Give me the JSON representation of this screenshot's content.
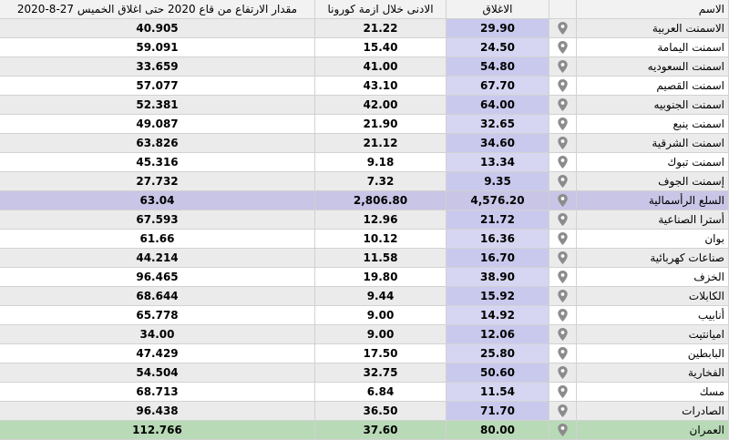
{
  "headers": {
    "rise": "مقدار الارتفاع من قاع 2020 حتى اغلاق الخميس 27-8-2020",
    "low": "الادنى خلال ازمة كورونا",
    "close": "الاغلاق",
    "name": "الاسم"
  },
  "rows": [
    {
      "name": "الاسمنت العربية",
      "close": "29.90",
      "low": "21.22",
      "rise": "40.905",
      "style": "alt"
    },
    {
      "name": "اسمنت اليمامة",
      "close": "24.50",
      "low": "15.40",
      "rise": "59.091",
      "style": "plain"
    },
    {
      "name": "اسمنت السعوديه",
      "close": "54.80",
      "low": "41.00",
      "rise": "33.659",
      "style": "alt"
    },
    {
      "name": "اسمنت القصيم",
      "close": "67.70",
      "low": "43.10",
      "rise": "57.077",
      "style": "plain"
    },
    {
      "name": "اسمنت الجنوبيه",
      "close": "64.00",
      "low": "42.00",
      "rise": "52.381",
      "style": "alt"
    },
    {
      "name": "اسمنت ينبع",
      "close": "32.65",
      "low": "21.90",
      "rise": "49.087",
      "style": "plain"
    },
    {
      "name": "اسمنت الشرقية",
      "close": "34.60",
      "low": "21.12",
      "rise": "63.826",
      "style": "alt"
    },
    {
      "name": "اسمنت تبوك",
      "close": "13.34",
      "low": "9.18",
      "rise": "45.316",
      "style": "plain"
    },
    {
      "name": "إسمنت الجوف",
      "close": "9.35",
      "low": "7.32",
      "rise": "27.732",
      "style": "alt"
    },
    {
      "name": "السلع الرأسمالية",
      "close": "4,576.20",
      "low": "2,806.80",
      "rise": "63.04",
      "style": "hl-purple"
    },
    {
      "name": "أسترا الصناعية",
      "close": "21.72",
      "low": "12.96",
      "rise": "67.593",
      "style": "alt"
    },
    {
      "name": "بوان",
      "close": "16.36",
      "low": "10.12",
      "rise": "61.66",
      "style": "plain"
    },
    {
      "name": "صناعات كهربائية",
      "close": "16.70",
      "low": "11.58",
      "rise": "44.214",
      "style": "alt"
    },
    {
      "name": "الخزف",
      "close": "38.90",
      "low": "19.80",
      "rise": "96.465",
      "style": "plain"
    },
    {
      "name": "الكابلات",
      "close": "15.92",
      "low": "9.44",
      "rise": "68.644",
      "style": "alt"
    },
    {
      "name": "أنابيب",
      "close": "14.92",
      "low": "9.00",
      "rise": "65.778",
      "style": "plain"
    },
    {
      "name": "اميانتيت",
      "close": "12.06",
      "low": "9.00",
      "rise": "34.00",
      "style": "alt"
    },
    {
      "name": "البابطين",
      "close": "25.80",
      "low": "17.50",
      "rise": "47.429",
      "style": "plain"
    },
    {
      "name": "الفخارية",
      "close": "50.60",
      "low": "32.75",
      "rise": "54.504",
      "style": "alt"
    },
    {
      "name": "مسك",
      "close": "11.54",
      "low": "6.84",
      "rise": "68.713",
      "style": "plain"
    },
    {
      "name": "الصادرات",
      "close": "71.70",
      "low": "36.50",
      "rise": "96.438",
      "style": "alt"
    },
    {
      "name": "العمران",
      "close": "80.00",
      "low": "37.60",
      "rise": "112.766",
      "style": "hl-green"
    }
  ],
  "icons": {
    "row_pin": "map-pin-icon"
  },
  "colors": {
    "header_bg": "#f2f2f2",
    "row_alt": "#ebebeb",
    "close_highlight": "#d6d6f2",
    "sector_row": "#c8c5e6",
    "top_row": "#b9dab7",
    "pin": "#8c8c8c"
  }
}
